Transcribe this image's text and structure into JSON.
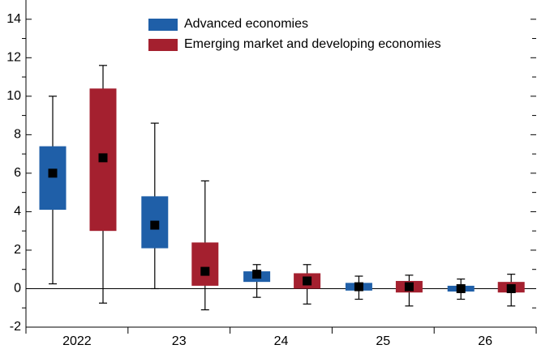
{
  "chart_data": {
    "type": "box",
    "categories": [
      "2022",
      "23",
      "24",
      "25",
      "26"
    ],
    "series": [
      {
        "name": "Advanced economies",
        "color": "#1f5fa8",
        "high": [
          10.0,
          8.6,
          1.25,
          0.65,
          0.5
        ],
        "q3": [
          7.4,
          4.8,
          0.9,
          0.3,
          0.15
        ],
        "median": [
          6.0,
          3.3,
          0.75,
          0.1,
          0.0
        ],
        "q1": [
          4.1,
          2.1,
          0.35,
          -0.1,
          -0.15
        ],
        "low": [
          0.25,
          0.0,
          -0.45,
          -0.55,
          -0.55
        ]
      },
      {
        "name": "Emerging market and developing economies",
        "color": "#a4202f",
        "high": [
          11.6,
          5.6,
          1.25,
          0.7,
          0.75
        ],
        "q3": [
          10.4,
          2.4,
          0.8,
          0.4,
          0.35
        ],
        "median": [
          6.8,
          0.9,
          0.4,
          0.1,
          0.0
        ],
        "q1": [
          3.0,
          0.15,
          0.0,
          -0.2,
          -0.2
        ],
        "low": [
          -0.75,
          -1.1,
          -0.8,
          -0.9,
          -0.9
        ]
      }
    ],
    "ylim": [
      -2,
      15
    ],
    "yticks": [
      -2,
      0,
      2,
      4,
      6,
      8,
      10,
      12,
      14
    ],
    "yminor_ticks": [
      -1,
      1,
      3,
      5,
      7,
      9,
      11,
      13
    ],
    "legend": "top"
  }
}
